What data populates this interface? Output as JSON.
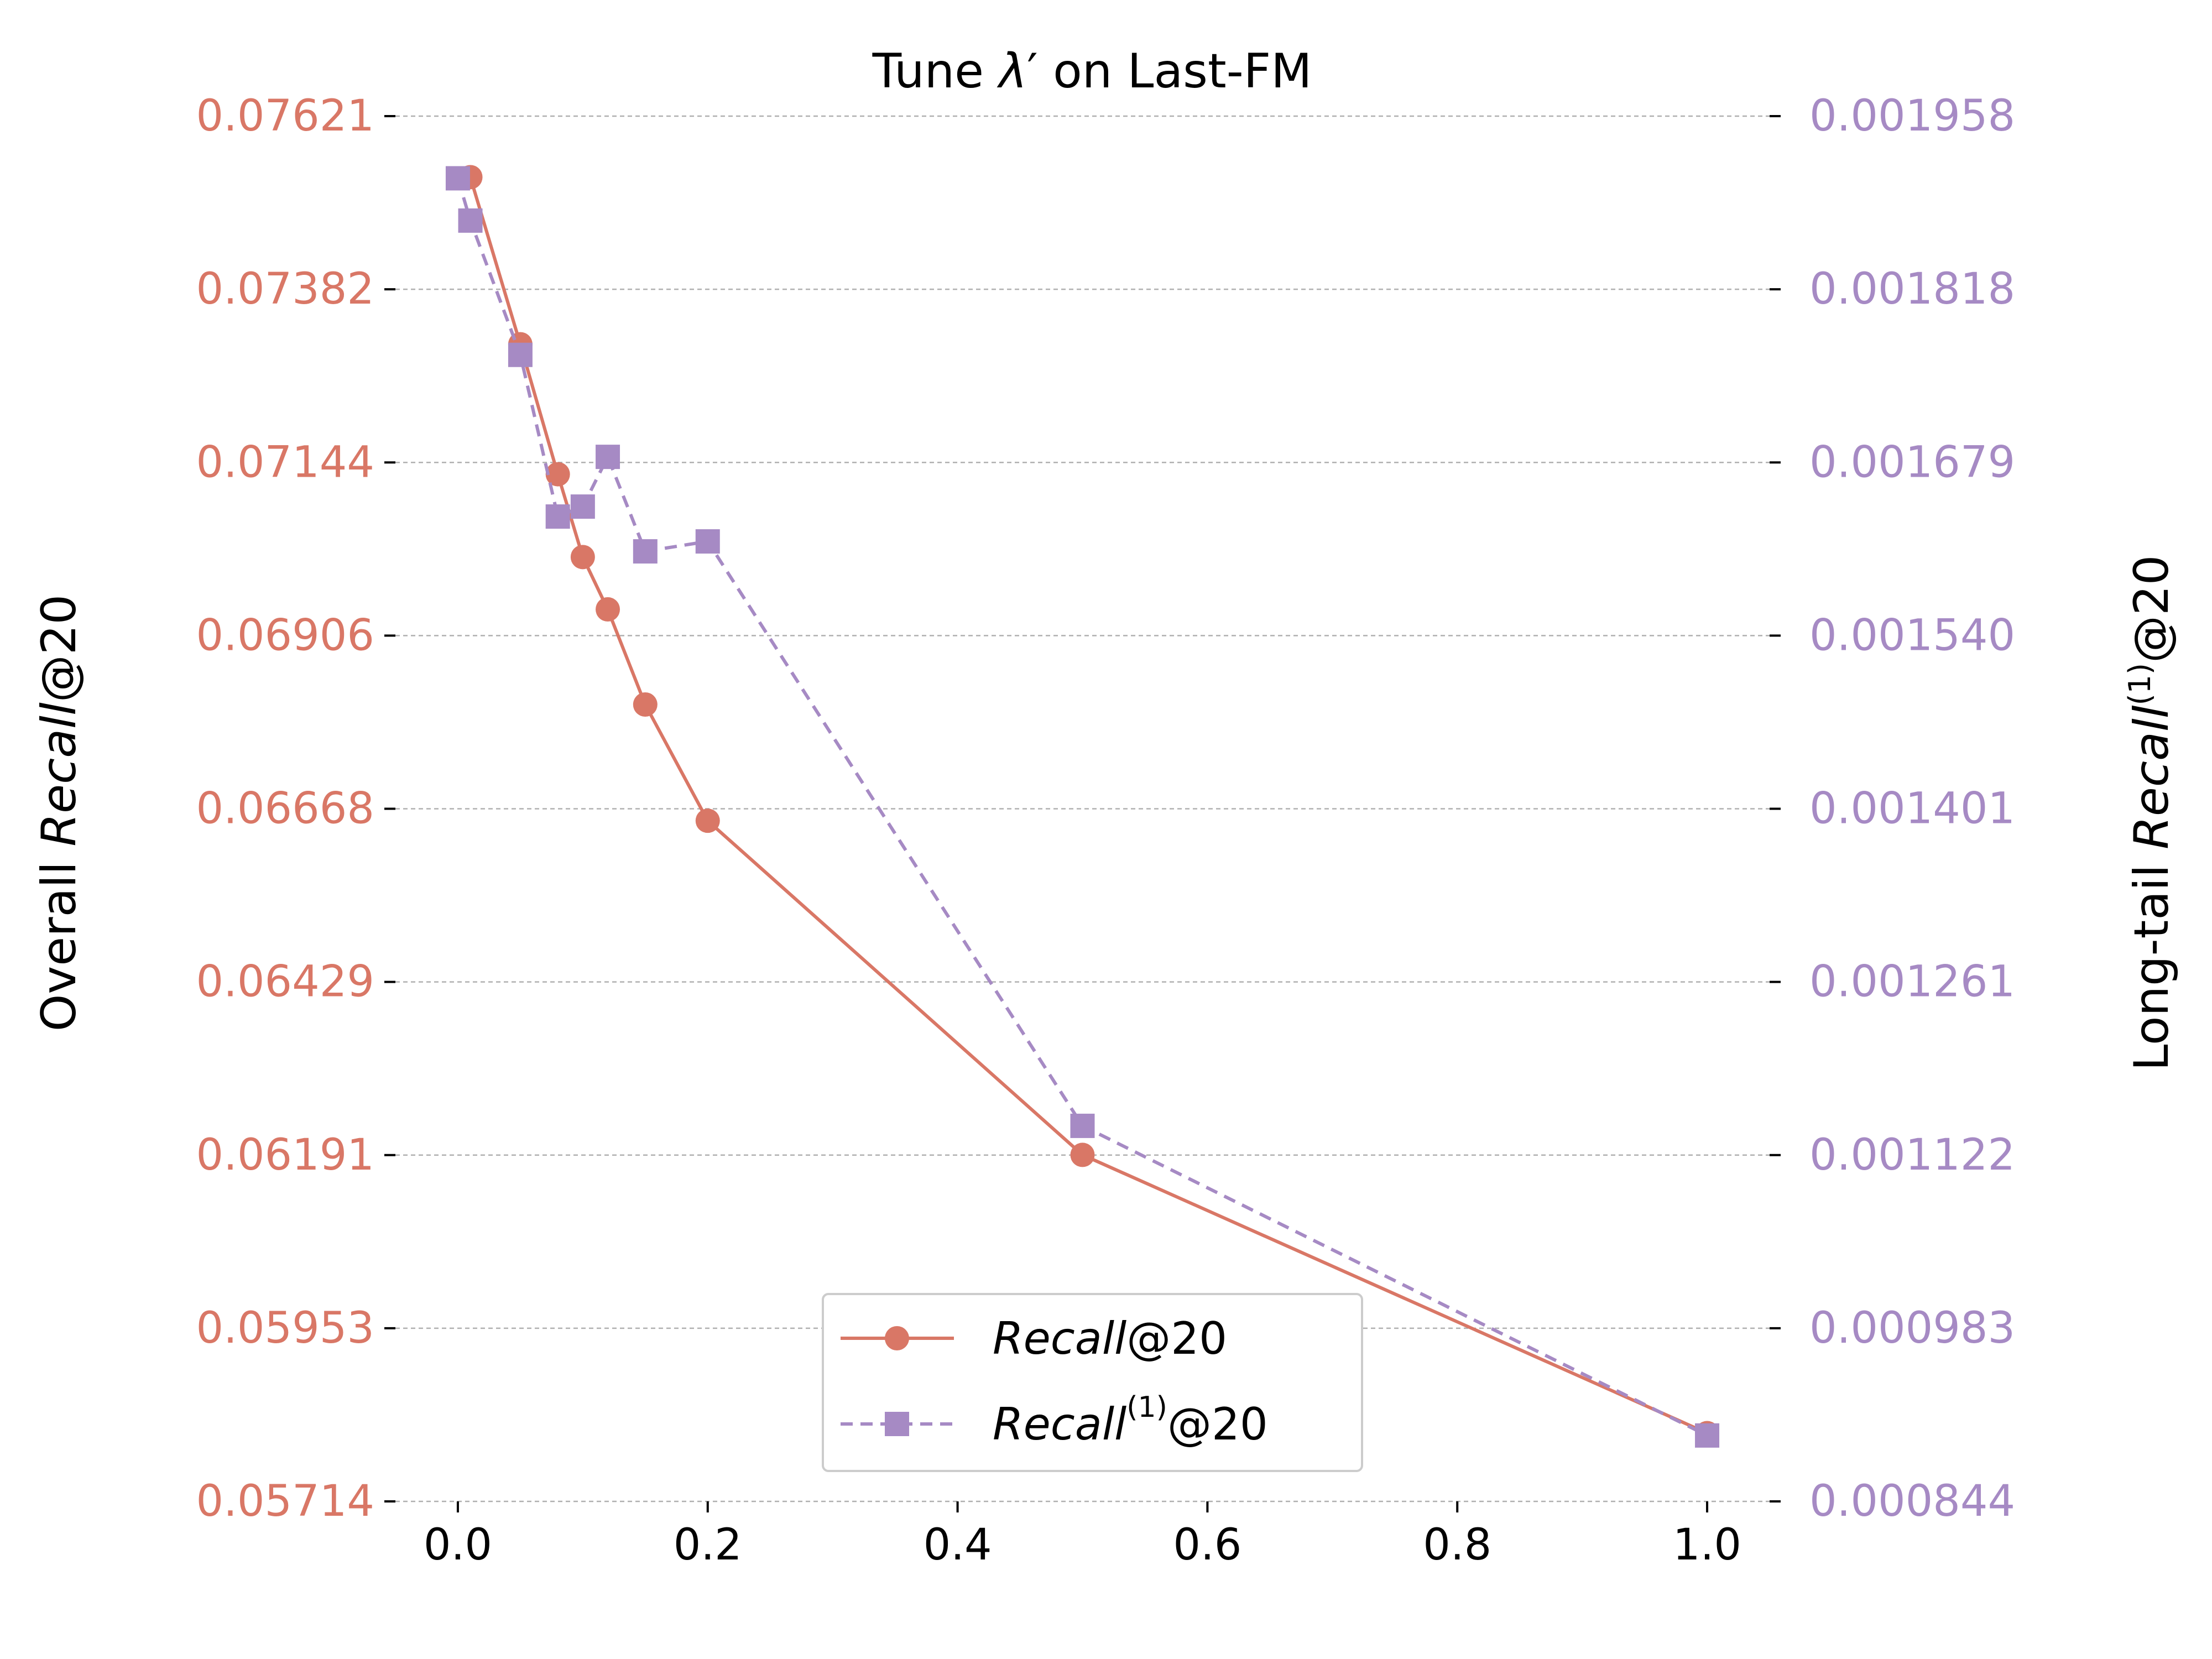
{
  "colors": {
    "left": "#d97766",
    "right": "#a68ac4",
    "grid": "#b0b0b0"
  },
  "chart_data": {
    "type": "line",
    "title": "Tune λ′ on Last-FM",
    "title_prefix": "Tune ",
    "title_lambda": "λ",
    "title_prime": "′",
    "title_suffix": " on Last-FM",
    "xlabel": "",
    "xlim": [
      -0.05,
      1.05
    ],
    "x_ticks": [
      0.0,
      0.2,
      0.4,
      0.6,
      0.8,
      1.0
    ],
    "x_tick_labels": [
      "0.0",
      "0.2",
      "0.4",
      "0.6",
      "0.8",
      "1.0"
    ],
    "ylabel_left": "Overall Recall@20",
    "ylabel_left_prefix": "Overall",
    "ylabel_left_italic": "Recall",
    "ylabel_left_suffix": "@20",
    "ylim_left": [
      0.05714,
      0.07621
    ],
    "yticks_left": [
      "0.07621",
      "0.07382",
      "0.07144",
      "0.06906",
      "0.06668",
      "0.06429",
      "0.06191",
      "0.05953",
      "0.05714"
    ],
    "ylabel_right": "Long-tail Recall(1)@20",
    "ylabel_right_prefix": "Long-tail",
    "ylabel_right_italic": "Recall",
    "ylabel_right_sup": "(1)",
    "ylabel_right_suffix": "@20",
    "ylim_right": [
      0.000844,
      0.001958
    ],
    "yticks_right": [
      "0.001958",
      "0.001818",
      "0.001679",
      "0.001540",
      "0.001401",
      "0.001261",
      "0.001122",
      "0.000983",
      "0.000844"
    ],
    "grid": true,
    "legend_position": "lower-center",
    "series": [
      {
        "name": "Recall@20",
        "label_italic": "Recall",
        "label_sup": "",
        "label_suffix": "@20",
        "axis": "left",
        "marker": "circle",
        "dashed": false,
        "x": [
          0.01,
          0.05,
          0.08,
          0.1,
          0.12,
          0.15,
          0.2,
          0.5,
          1.0
        ],
        "values": [
          0.07537,
          0.07307,
          0.07128,
          0.07014,
          0.06942,
          0.06811,
          0.06651,
          0.06191,
          0.05808
        ]
      },
      {
        "name": "Recall(1)@20",
        "label_italic": "Recall",
        "label_sup": "(1)",
        "label_suffix": "@20",
        "axis": "right",
        "marker": "square",
        "dashed": true,
        "x": [
          0.0,
          0.01,
          0.05,
          0.08,
          0.1,
          0.12,
          0.15,
          0.2,
          0.5,
          1.0
        ],
        "values": [
          0.001908,
          0.001874,
          0.001766,
          0.001636,
          0.001644,
          0.001684,
          0.001608,
          0.001616,
          0.001146,
          0.000897
        ]
      }
    ]
  }
}
